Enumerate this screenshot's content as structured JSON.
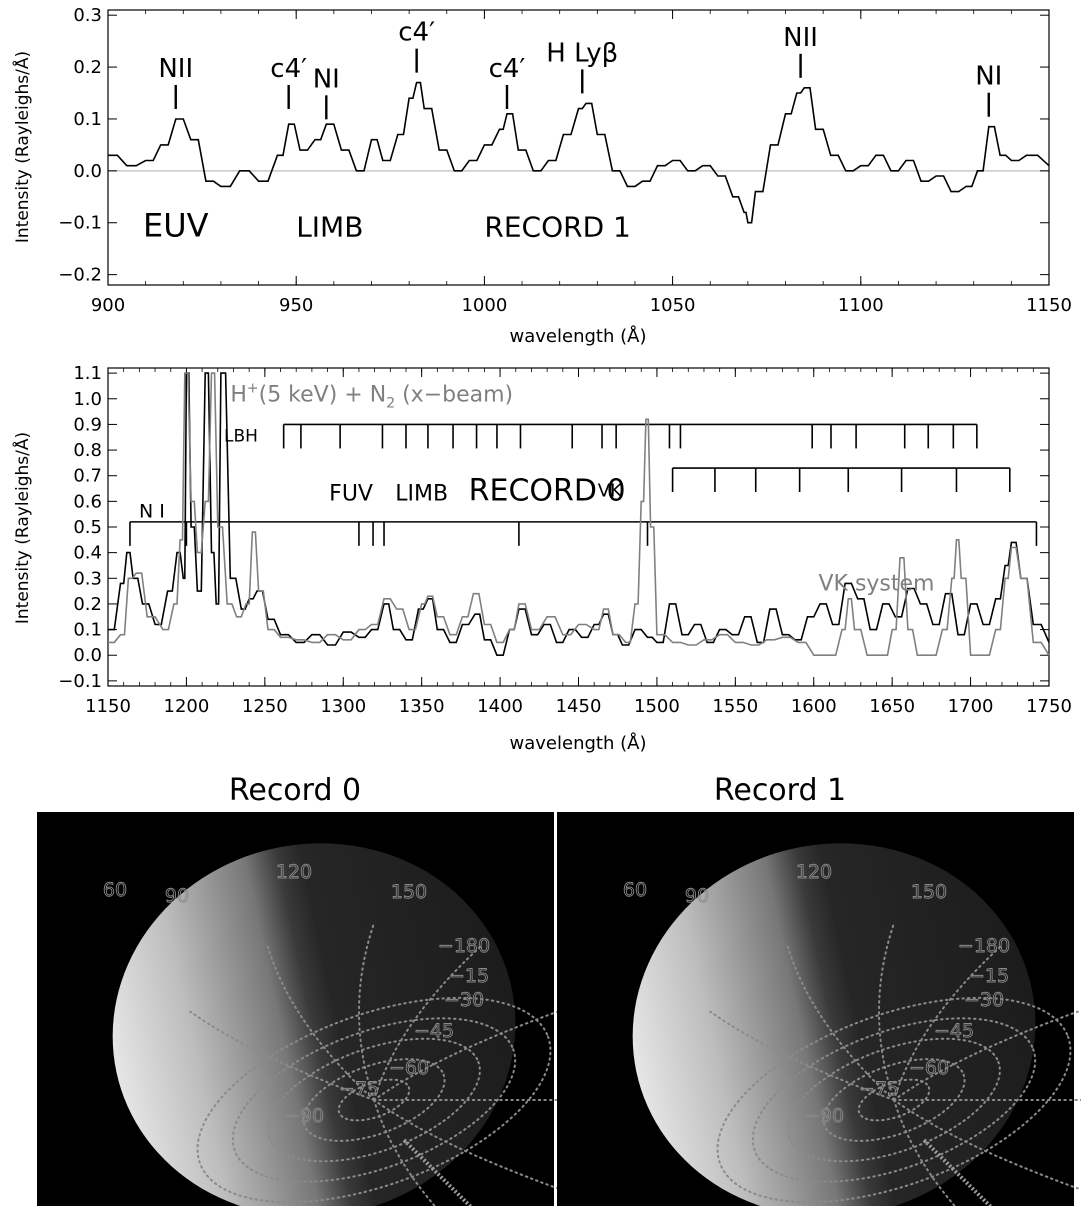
{
  "chart_data": [
    {
      "type": "line",
      "x_label": "wavelength (Å)",
      "y_label": "Intensity (Rayleighs/Å)",
      "xlim": [
        900,
        1150
      ],
      "ylim": [
        -0.22,
        0.31
      ],
      "x_ticks": [
        "900",
        "950",
        "1000",
        "1050",
        "1100",
        "1150"
      ],
      "y_ticks": [
        "−0.2",
        "−0.1",
        "0.0",
        "0.1",
        "0.2",
        "0.3"
      ],
      "annotations": [
        {
          "text": "EUV",
          "x": 918,
          "y": -0.1
        },
        {
          "text": "LIMB",
          "x": 950,
          "y": -0.1
        },
        {
          "text": "RECORD 1",
          "x": 1000,
          "y": -0.1
        }
      ],
      "line_labels": [
        {
          "text": "NII",
          "x": 918,
          "y": 0.1
        },
        {
          "text": "c4′",
          "x": 948,
          "y": 0.1
        },
        {
          "text": "NI",
          "x": 958,
          "y": 0.08
        },
        {
          "text": "c4′",
          "x": 982,
          "y": 0.17
        },
        {
          "text": "c4′",
          "x": 1006,
          "y": 0.1
        },
        {
          "text": "H Lyβ",
          "x": 1026,
          "y": 0.13
        },
        {
          "text": "NII",
          "x": 1084,
          "y": 0.16
        },
        {
          "text": "NI",
          "x": 1134,
          "y": 0.085
        }
      ],
      "spectrum": {
        "x": [
          900,
          905,
          910,
          914,
          918,
          922,
          926,
          930,
          935,
          940,
          945,
          948,
          951,
          955,
          958,
          962,
          966,
          970,
          973,
          977,
          980,
          982,
          984,
          988,
          992,
          996,
          1000,
          1004,
          1006,
          1009,
          1013,
          1017,
          1021,
          1025,
          1027,
          1030,
          1034,
          1038,
          1042,
          1046,
          1050,
          1054,
          1058,
          1062,
          1066,
          1069,
          1070,
          1072,
          1076,
          1080,
          1083,
          1085,
          1088,
          1092,
          1096,
          1100,
          1104,
          1108,
          1112,
          1116,
          1120,
          1124,
          1128,
          1131,
          1134,
          1137,
          1140,
          1144,
          1150
        ],
        "y": [
          0.03,
          0.01,
          0.02,
          0.05,
          0.1,
          0.06,
          -0.02,
          -0.03,
          0.0,
          -0.02,
          0.03,
          0.09,
          0.04,
          0.06,
          0.09,
          0.04,
          0.0,
          0.06,
          0.02,
          0.07,
          0.14,
          0.17,
          0.12,
          0.04,
          0.0,
          0.02,
          0.05,
          0.08,
          0.11,
          0.04,
          0.0,
          0.02,
          0.07,
          0.12,
          0.13,
          0.07,
          0.0,
          -0.03,
          -0.02,
          0.01,
          0.02,
          0.0,
          0.01,
          -0.01,
          -0.05,
          -0.08,
          -0.1,
          -0.04,
          0.05,
          0.11,
          0.15,
          0.16,
          0.08,
          0.03,
          0.0,
          0.01,
          0.03,
          0.0,
          0.02,
          -0.02,
          -0.01,
          -0.04,
          -0.03,
          0.0,
          0.085,
          0.03,
          0.02,
          0.03,
          0.01
        ]
      }
    },
    {
      "type": "line",
      "x_label": "wavelength (Å)",
      "y_label": "Intensity (Rayleighs/Å)",
      "xlim": [
        1150,
        1750
      ],
      "ylim": [
        -0.12,
        1.12
      ],
      "x_ticks": [
        "1150",
        "1200",
        "1250",
        "1300",
        "1350",
        "1400",
        "1450",
        "1500",
        "1550",
        "1600",
        "1650",
        "1700",
        "1750"
      ],
      "y_ticks": [
        "−0.1",
        "0.0",
        "0.1",
        "0.2",
        "0.3",
        "0.4",
        "0.5",
        "0.6",
        "0.7",
        "0.8",
        "0.9",
        "1.0",
        "1.1"
      ],
      "annotations": [
        {
          "text_base": "H",
          "text_sup": "+",
          "text_mid": "(5 keV) + N",
          "text_sub": "2",
          "text_end": " (x−beam)",
          "color": "#808080"
        },
        {
          "text": "FUV",
          "x": 1310
        },
        {
          "text": "LIMB",
          "x": 1350
        },
        {
          "text": "RECORD 0",
          "x": 1420
        },
        {
          "text": "VK system",
          "x": 1640,
          "color": "#808080"
        }
      ],
      "line_systems": [
        {
          "label": "LBH",
          "y": 0.9,
          "x0": 1262,
          "x1": 1704,
          "ticks": [
            1262,
            1273,
            1298,
            1325,
            1340,
            1354,
            1370,
            1385,
            1398,
            1413,
            1446,
            1465,
            1474,
            1508,
            1515,
            1599,
            1611,
            1627,
            1658,
            1673,
            1689,
            1704
          ]
        },
        {
          "label": "VK",
          "y": 0.73,
          "x0": 1510,
          "x1": 1725,
          "ticks": [
            1510,
            1537,
            1563,
            1591,
            1622,
            1656,
            1691,
            1725
          ]
        },
        {
          "label": "N I",
          "y": 0.52,
          "x0": 1164,
          "x1": 1742,
          "ticks": [
            1164,
            1200,
            1310,
            1319,
            1326,
            1412,
            1494,
            1742
          ]
        }
      ],
      "series": [
        {
          "name": "RECORD 0",
          "color": "#000000",
          "x": [
            1150,
            1158,
            1162,
            1166,
            1172,
            1180,
            1188,
            1194,
            1198,
            1200,
            1203,
            1207,
            1212,
            1216,
            1219,
            1222,
            1228,
            1235,
            1240,
            1245,
            1252,
            1260,
            1270,
            1280,
            1290,
            1300,
            1310,
            1318,
            1326,
            1332,
            1340,
            1348,
            1354,
            1360,
            1368,
            1376,
            1384,
            1390,
            1398,
            1406,
            1412,
            1420,
            1428,
            1436,
            1444,
            1452,
            1460,
            1466,
            1472,
            1478,
            1486,
            1494,
            1500,
            1508,
            1516,
            1524,
            1532,
            1540,
            1548,
            1556,
            1564,
            1572,
            1580,
            1588,
            1596,
            1604,
            1612,
            1620,
            1628,
            1636,
            1644,
            1652,
            1660,
            1668,
            1676,
            1684,
            1692,
            1700,
            1708,
            1716,
            1722,
            1726,
            1732,
            1740,
            1750
          ],
          "y": [
            0.1,
            0.28,
            0.4,
            0.3,
            0.2,
            0.12,
            0.25,
            0.4,
            0.3,
            1.1,
            0.5,
            0.25,
            1.1,
            0.4,
            0.2,
            1.1,
            0.3,
            0.18,
            0.22,
            0.25,
            0.14,
            0.08,
            0.05,
            0.08,
            0.04,
            0.09,
            0.07,
            0.1,
            0.2,
            0.1,
            0.06,
            0.18,
            0.22,
            0.1,
            0.05,
            0.12,
            0.16,
            0.06,
            0.0,
            0.1,
            0.18,
            0.08,
            0.12,
            0.05,
            0.1,
            0.07,
            0.12,
            0.16,
            0.08,
            0.04,
            0.1,
            0.07,
            0.05,
            0.2,
            0.08,
            0.12,
            0.05,
            0.1,
            0.08,
            0.15,
            0.05,
            0.18,
            0.08,
            0.06,
            0.15,
            0.2,
            0.12,
            0.28,
            0.22,
            0.1,
            0.2,
            0.15,
            0.26,
            0.2,
            0.12,
            0.24,
            0.08,
            0.2,
            0.12,
            0.22,
            0.35,
            0.44,
            0.3,
            0.12,
            0.05
          ]
        },
        {
          "name": "H+(5 keV) + N2 (x-beam)",
          "color": "#808080",
          "x": [
            1150,
            1158,
            1163,
            1168,
            1175,
            1185,
            1192,
            1196,
            1199,
            1203,
            1207,
            1212,
            1216,
            1220,
            1226,
            1232,
            1238,
            1242,
            1246,
            1252,
            1260,
            1270,
            1280,
            1290,
            1300,
            1310,
            1318,
            1326,
            1334,
            1342,
            1350,
            1354,
            1360,
            1368,
            1376,
            1383,
            1390,
            1398,
            1406,
            1412,
            1420,
            1430,
            1440,
            1450,
            1460,
            1466,
            1472,
            1480,
            1486,
            1490,
            1493,
            1496,
            1500,
            1510,
            1520,
            1530,
            1540,
            1550,
            1560,
            1570,
            1580,
            1590,
            1600,
            1610,
            1618,
            1622,
            1626,
            1634,
            1644,
            1650,
            1655,
            1660,
            1666,
            1674,
            1682,
            1688,
            1691,
            1694,
            1700,
            1708,
            1716,
            1722,
            1726,
            1732,
            1740,
            1750
          ],
          "y": [
            0.05,
            0.08,
            0.3,
            0.32,
            0.15,
            0.1,
            0.2,
            0.45,
            1.1,
            0.6,
            0.4,
            0.6,
            1.1,
            0.5,
            0.2,
            0.15,
            0.2,
            0.48,
            0.25,
            0.1,
            0.07,
            0.06,
            0.05,
            0.08,
            0.06,
            0.1,
            0.12,
            0.22,
            0.18,
            0.1,
            0.2,
            0.23,
            0.15,
            0.08,
            0.15,
            0.24,
            0.12,
            0.05,
            0.1,
            0.2,
            0.1,
            0.15,
            0.08,
            0.12,
            0.1,
            0.18,
            0.08,
            0.05,
            0.2,
            0.6,
            0.92,
            0.5,
            0.08,
            0.05,
            0.04,
            0.06,
            0.08,
            0.05,
            0.04,
            0.06,
            0.07,
            0.05,
            0.0,
            0.0,
            0.1,
            0.22,
            0.1,
            0.0,
            0.0,
            0.1,
            0.38,
            0.1,
            0.0,
            0.0,
            0.1,
            0.3,
            0.45,
            0.3,
            0.0,
            0.0,
            0.1,
            0.3,
            0.42,
            0.3,
            0.05,
            0.0
          ]
        }
      ]
    }
  ],
  "images": [
    {
      "title": "Record 0",
      "grid_labels": [
        "120",
        "150",
        "60",
        "90",
        "−180",
        "−15",
        "−30",
        "−45",
        "−60",
        "−75",
        "−90"
      ]
    },
    {
      "title": "Record 1",
      "grid_labels": [
        "120",
        "150",
        "60",
        "90",
        "−180",
        "−15",
        "−30",
        "−45",
        "−60",
        "−75",
        "−90"
      ]
    }
  ]
}
